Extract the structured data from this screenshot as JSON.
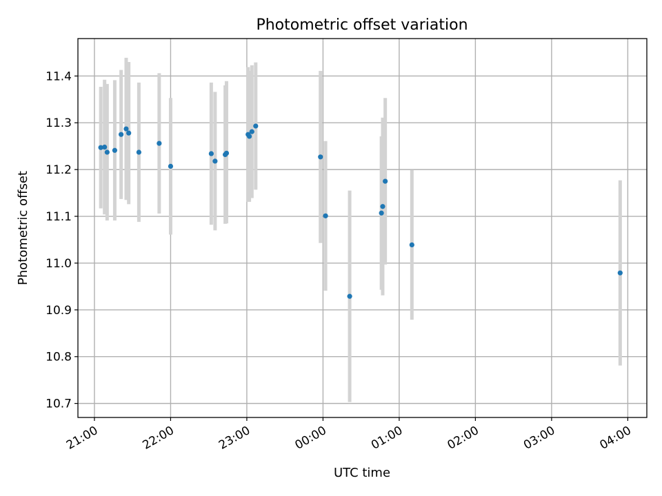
{
  "chart_data": {
    "type": "scatter",
    "title": "Photometric offset variation",
    "xlabel": "UTC time",
    "ylabel": "Photometric offset",
    "grid": true,
    "legend": "none",
    "x_axis": {
      "unit": "UTC time",
      "range": [
        "20:47",
        "04:15"
      ],
      "ticks": [
        {
          "time": "21:00",
          "label": "21:00"
        },
        {
          "time": "22:00",
          "label": "22:00"
        },
        {
          "time": "23:00",
          "label": "23:00"
        },
        {
          "time": "00:00",
          "label": "00:00"
        },
        {
          "time": "01:00",
          "label": "01:00"
        },
        {
          "time": "02:00",
          "label": "02:00"
        },
        {
          "time": "03:00",
          "label": "03:00"
        },
        {
          "time": "04:00",
          "label": "04:00"
        }
      ]
    },
    "y_axis": {
      "range": [
        10.67,
        11.48
      ],
      "ticks": [
        {
          "value": 10.7,
          "label": "10.7"
        },
        {
          "value": 10.8,
          "label": "10.8"
        },
        {
          "value": 10.9,
          "label": "10.9"
        },
        {
          "value": 11.0,
          "label": "11.0"
        },
        {
          "value": 11.1,
          "label": "11.1"
        },
        {
          "value": 11.2,
          "label": "11.2"
        },
        {
          "value": 11.3,
          "label": "11.3"
        },
        {
          "value": 11.4,
          "label": "11.4"
        }
      ]
    },
    "colors": {
      "point": "#1f77b4",
      "error_bar": "#d3d3d3",
      "grid": "#b0b0b0"
    },
    "points": [
      {
        "time": "21:05",
        "y": 11.247,
        "ylow": 11.117,
        "yhigh": 11.377
      },
      {
        "time": "21:08",
        "y": 11.248,
        "ylow": 11.104,
        "yhigh": 11.392
      },
      {
        "time": "21:10",
        "y": 11.237,
        "ylow": 11.091,
        "yhigh": 11.383
      },
      {
        "time": "21:16",
        "y": 11.241,
        "ylow": 11.091,
        "yhigh": 11.391
      },
      {
        "time": "21:21",
        "y": 11.275,
        "ylow": 11.137,
        "yhigh": 11.413
      },
      {
        "time": "21:25",
        "y": 11.287,
        "ylow": 11.135,
        "yhigh": 11.439
      },
      {
        "time": "21:27",
        "y": 11.278,
        "ylow": 11.126,
        "yhigh": 11.43
      },
      {
        "time": "21:35",
        "y": 11.237,
        "ylow": 11.088,
        "yhigh": 11.386
      },
      {
        "time": "21:51",
        "y": 11.256,
        "ylow": 11.106,
        "yhigh": 11.406
      },
      {
        "time": "22:00",
        "y": 11.207,
        "ylow": 11.061,
        "yhigh": 11.353
      },
      {
        "time": "22:32",
        "y": 11.234,
        "ylow": 11.082,
        "yhigh": 11.386
      },
      {
        "time": "22:35",
        "y": 11.218,
        "ylow": 11.07,
        "yhigh": 11.366
      },
      {
        "time": "22:43",
        "y": 11.232,
        "ylow": 11.084,
        "yhigh": 11.38
      },
      {
        "time": "22:44",
        "y": 11.235,
        "ylow": 11.085,
        "yhigh": 11.389
      },
      {
        "time": "23:01",
        "y": 11.275,
        "ylow": 11.131,
        "yhigh": 11.419
      },
      {
        "time": "23:02",
        "y": 11.271,
        "ylow": 11.131,
        "yhigh": 11.411
      },
      {
        "time": "23:04",
        "y": 11.281,
        "ylow": 11.139,
        "yhigh": 11.423
      },
      {
        "time": "23:07",
        "y": 11.293,
        "ylow": 11.157,
        "yhigh": 11.429
      },
      {
        "time": "23:58",
        "y": 11.227,
        "ylow": 11.043,
        "yhigh": 11.411
      },
      {
        "time": "00:02",
        "y": 11.101,
        "ylow": 10.941,
        "yhigh": 11.261
      },
      {
        "time": "00:21",
        "y": 10.929,
        "ylow": 10.703,
        "yhigh": 11.155
      },
      {
        "time": "00:46",
        "y": 11.107,
        "ylow": 10.943,
        "yhigh": 11.271
      },
      {
        "time": "00:47",
        "y": 11.121,
        "ylow": 10.931,
        "yhigh": 11.311
      },
      {
        "time": "00:49",
        "y": 11.175,
        "ylow": 10.997,
        "yhigh": 11.353
      },
      {
        "time": "01:10",
        "y": 11.039,
        "ylow": 10.879,
        "yhigh": 11.199
      },
      {
        "time": "03:54",
        "y": 10.979,
        "ylow": 10.781,
        "yhigh": 11.177
      }
    ]
  }
}
